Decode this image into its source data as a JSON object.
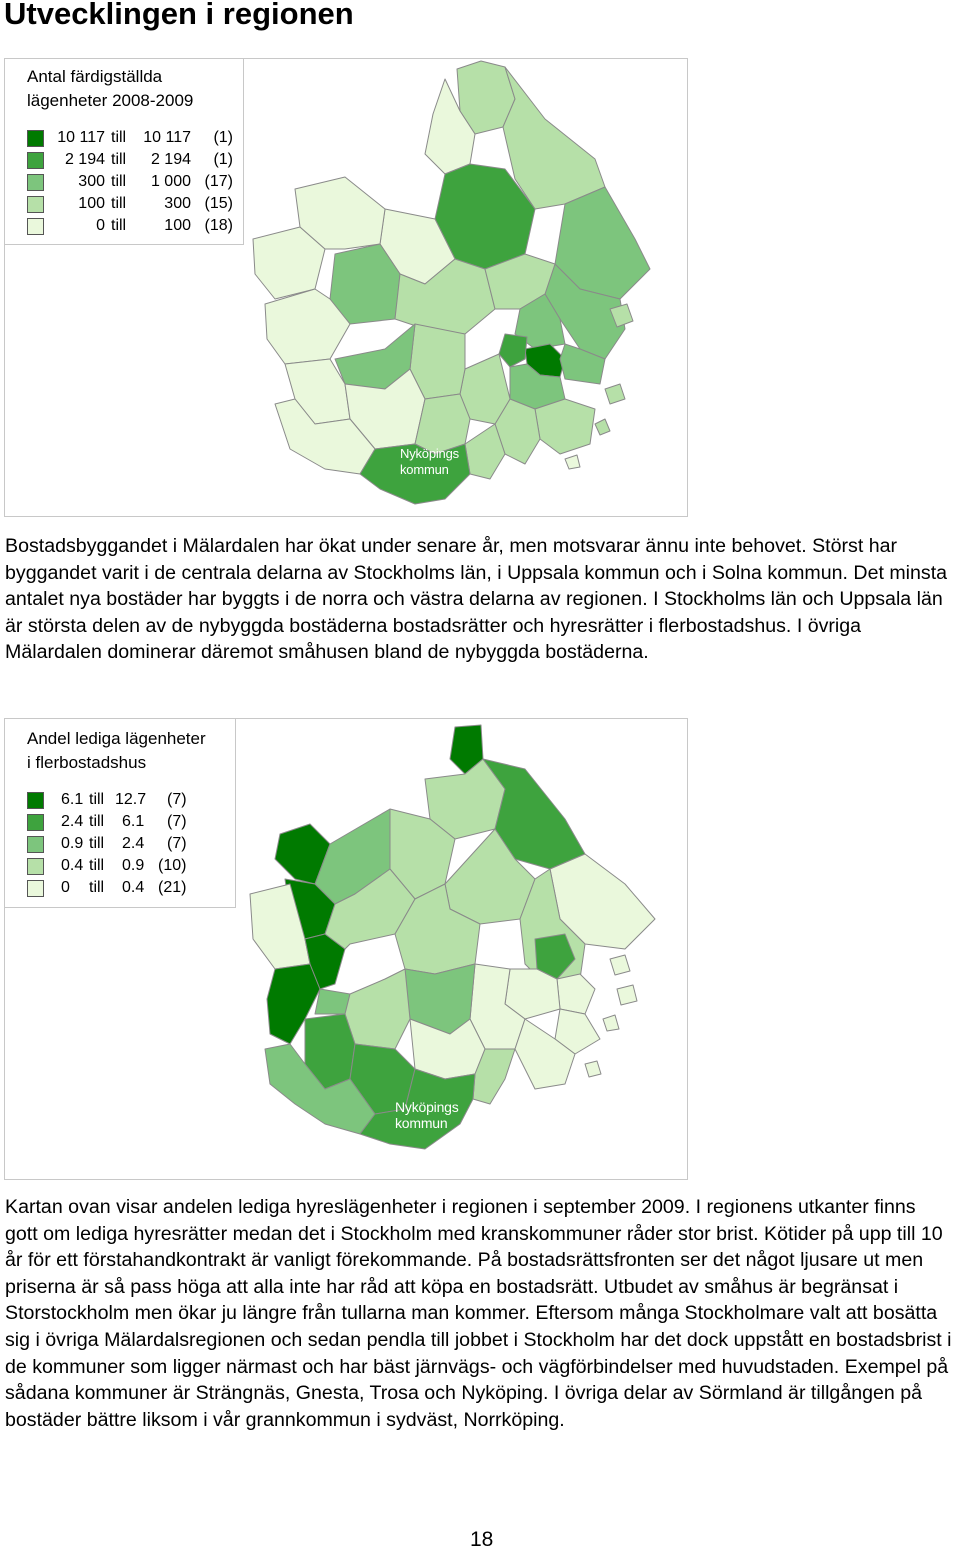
{
  "page": {
    "heading": "Utvecklingen i regionen",
    "page_number": "18"
  },
  "colors": {
    "class5": "#007a00",
    "class4": "#3ea33e",
    "class3": "#7dc57d",
    "class2": "#b6e0a8",
    "class1": "#eaf8dc",
    "outline": "#8a8a8a"
  },
  "map1": {
    "legend_title_line1": "Antal färdigställda",
    "legend_title_line2": "lägenheter 2008-2009",
    "legend": [
      {
        "from": "10 117",
        "till": "till",
        "to": "10 117",
        "count": "(1)",
        "color_key": "class5"
      },
      {
        "from": "2 194",
        "till": "till",
        "to": "2 194",
        "count": "(1)",
        "color_key": "class4"
      },
      {
        "from": "300",
        "till": "till",
        "to": "1 000",
        "count": "(17)",
        "color_key": "class3"
      },
      {
        "from": "100",
        "till": "till",
        "to": "300",
        "count": "(15)",
        "color_key": "class2"
      },
      {
        "from": "0",
        "till": "till",
        "to": "100",
        "count": "(18)",
        "color_key": "class1"
      }
    ],
    "label_line1": "Nyköpings",
    "label_line2": "kommun"
  },
  "paragraph1": "Bostadsbyggandet i Mälardalen har ökat under senare år, men motsvarar ännu inte behovet. Störst har byggandet varit i de centrala delarna av Stockholms län, i Uppsala kommun och i Solna kommun. Det minsta antalet nya bostäder har byggts i de norra och västra delarna av regionen. I Stockholms län och Uppsala län är största delen av de nybyggda bostäderna bostadsrätter och hyresrätter i flerbostadshus. I övriga Mälardalen dominerar däremot småhusen bland de nybyggda bostäderna.",
  "map2": {
    "legend_title_line1": "Andel lediga lägenheter",
    "legend_title_line2": "i flerbostadshus",
    "legend": [
      {
        "from": "6.1",
        "till": "till",
        "to": "12.7",
        "count": "(7)",
        "color_key": "class5"
      },
      {
        "from": "2.4",
        "till": "till",
        "to": "6.1",
        "count": "(7)",
        "color_key": "class4"
      },
      {
        "from": "0.9",
        "till": "till",
        "to": "2.4",
        "count": "(7)",
        "color_key": "class3"
      },
      {
        "from": "0.4",
        "till": "till",
        "to": "0.9",
        "count": "(10)",
        "color_key": "class2"
      },
      {
        "from": "0",
        "till": "till",
        "to": "0.4",
        "count": "(21)",
        "color_key": "class1"
      }
    ],
    "label_line1": "Nyköpings",
    "label_line2": "kommun"
  },
  "paragraph2": "Kartan ovan visar andelen lediga hyreslägenheter i regionen i september 2009. I regionens utkanter finns gott om lediga hyresrätter medan det i Stockholm med kranskommuner råder stor brist. Kötider på upp till 10 år för ett förstahandkontrakt är vanligt förekommande. På bostadsrättsfronten ser det något ljusare ut men priserna är så pass höga att alla inte har råd att köpa en bostadsrätt. Utbudet av småhus är begränsat i Storstockholm men ökar ju längre från tullarna man kommer. Eftersom många Stockholmare valt att bosätta sig i övriga Mälardalsregionen och sedan pendla till jobbet i Stockholm har det dock uppstått en bostadsbrist i de kommuner som ligger närmast och har bäst järnvägs- och vägförbindelser med huvudstaden. Exempel på sådana kommuner är Strängnäs, Gnesta, Trosa och Nyköping. I övriga delar av Sörmland är tillgången på bostäder bättre liksom i vår grannkommun i sydväst, Norrköping."
}
